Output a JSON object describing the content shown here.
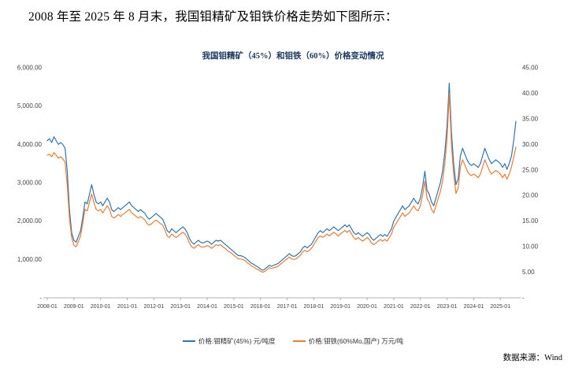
{
  "page": {
    "heading": "2008 年至 2025 年 8 月末，我国钼精矿及钼铁价格走势如下图所示：",
    "source_label": "数据来源：Wind"
  },
  "chart_data": {
    "type": "line",
    "title": "我国钼精矿（45%）和钼铁（60%）价格变动情况",
    "legend_position": "bottom",
    "grid": false,
    "x_start": "2008-01",
    "x_end": "2025-08",
    "frequency": "monthly",
    "x_tick_labels": [
      "2008-01",
      "2009-01",
      "2010-01",
      "2011-01",
      "2012-01",
      "2013-01",
      "2014-01",
      "2015-01",
      "2016-01",
      "2017-01",
      "2018-01",
      "2019-01",
      "2020-01",
      "2021-01",
      "2022-01",
      "2023-01",
      "2024-01",
      "2025-01"
    ],
    "left_axis": {
      "min": 0,
      "max": 6000,
      "unit": "元/吨度",
      "ticks": [
        "6,000.00",
        "5,000.00",
        "4,000.00",
        "3,000.00",
        "2,000.00",
        "1,000.00",
        "-"
      ]
    },
    "right_axis": {
      "min": 0,
      "max": 45,
      "unit": "万元/吨",
      "ticks": [
        "45.00",
        "40.00",
        "35.00",
        "30.00",
        "25.00",
        "20.00",
        "15.00",
        "10.00",
        "5.00",
        "-"
      ]
    },
    "series": [
      {
        "name": "价格:钼精矿(45%) 元/吨度",
        "axis": "left",
        "color": "#2e75b6",
        "values": [
          4100,
          4150,
          4050,
          4200,
          4100,
          4000,
          4050,
          4000,
          3900,
          3300,
          2300,
          1700,
          1500,
          1450,
          1600,
          1750,
          2100,
          2500,
          2450,
          2700,
          2950,
          2700,
          2500,
          2450,
          2500,
          2400,
          2500,
          2600,
          2500,
          2300,
          2250,
          2300,
          2350,
          2300,
          2350,
          2400,
          2450,
          2500,
          2400,
          2350,
          2300,
          2250,
          2300,
          2250,
          2200,
          2100,
          2050,
          2100,
          2150,
          2200,
          2150,
          2100,
          2050,
          1900,
          1750,
          1700,
          1800,
          1750,
          1700,
          1750,
          1800,
          1850,
          1800,
          1700,
          1550,
          1450,
          1400,
          1450,
          1500,
          1450,
          1430,
          1450,
          1480,
          1450,
          1400,
          1450,
          1500,
          1480,
          1500,
          1450,
          1400,
          1350,
          1300,
          1250,
          1200,
          1150,
          1100,
          1100,
          1080,
          1050,
          1000,
          950,
          900,
          870,
          830,
          800,
          750,
          720,
          750,
          800,
          850,
          820,
          850,
          870,
          900,
          950,
          1000,
          1050,
          1100,
          1150,
          1100,
          1080,
          1100,
          1150,
          1200,
          1300,
          1350,
          1300,
          1350,
          1400,
          1500,
          1600,
          1700,
          1750,
          1700,
          1750,
          1800,
          1750,
          1800,
          1850,
          1800,
          1750,
          1800,
          1850,
          1900,
          1850,
          1900,
          1800,
          1700,
          1650,
          1700,
          1650,
          1600,
          1650,
          1700,
          1650,
          1550,
          1500,
          1550,
          1600,
          1650,
          1600,
          1650,
          1600,
          1700,
          1800,
          2000,
          2100,
          2200,
          2300,
          2400,
          2300,
          2350,
          2400,
          2500,
          2600,
          2500,
          2450,
          2600,
          2900,
          3300,
          2800,
          2700,
          2500,
          2400,
          2600,
          2800,
          3000,
          3300,
          3800,
          4500,
          5600,
          4300,
          3500,
          2950,
          3100,
          3700,
          3900,
          3750,
          3600,
          3500,
          3450,
          3500,
          3450,
          3400,
          3500,
          3700,
          3900,
          3750,
          3600,
          3500,
          3550,
          3600,
          3550,
          3500,
          3400,
          3500,
          3350,
          3500,
          3700,
          4100,
          4600
        ]
      },
      {
        "name": "价格:钼铁(60%Mo,国产) 万元/吨",
        "axis": "right",
        "color": "#ed7d31",
        "values": [
          27.9,
          28.1,
          27.6,
          28.4,
          27.9,
          27.3,
          27.6,
          27.2,
          26.5,
          22.0,
          15.5,
          11.8,
          10.3,
          10.0,
          11.0,
          12.1,
          14.6,
          17.3,
          17.0,
          18.7,
          20.3,
          18.7,
          17.3,
          17.0,
          17.3,
          16.6,
          17.3,
          18.0,
          17.3,
          15.9,
          15.6,
          15.9,
          16.3,
          15.9,
          16.3,
          16.6,
          17.0,
          17.3,
          16.6,
          16.3,
          15.9,
          15.6,
          15.9,
          15.6,
          15.2,
          14.5,
          14.2,
          14.5,
          14.9,
          15.2,
          14.9,
          14.5,
          14.2,
          13.2,
          12.1,
          11.8,
          12.5,
          12.1,
          11.8,
          12.1,
          12.5,
          12.8,
          12.5,
          11.8,
          10.7,
          10.0,
          9.7,
          10.0,
          10.4,
          10.0,
          9.9,
          10.0,
          10.2,
          10.0,
          9.7,
          10.0,
          10.4,
          10.2,
          10.4,
          10.0,
          9.7,
          9.3,
          9.0,
          8.7,
          8.3,
          8.0,
          7.6,
          7.6,
          7.5,
          7.3,
          6.9,
          6.6,
          6.2,
          6.0,
          5.7,
          5.5,
          5.2,
          5.0,
          5.2,
          5.5,
          5.9,
          5.7,
          5.9,
          6.0,
          6.2,
          6.6,
          6.9,
          7.3,
          7.6,
          8.0,
          7.6,
          7.5,
          7.6,
          8.0,
          8.3,
          9.0,
          9.3,
          9.0,
          9.3,
          9.7,
          10.4,
          11.1,
          11.8,
          12.1,
          11.8,
          12.1,
          12.5,
          12.1,
          12.5,
          12.8,
          12.5,
          12.1,
          12.5,
          12.8,
          13.2,
          12.8,
          13.2,
          12.5,
          11.8,
          11.4,
          11.8,
          11.4,
          11.1,
          11.4,
          11.8,
          11.4,
          10.7,
          10.4,
          10.7,
          11.1,
          11.4,
          11.1,
          11.4,
          11.1,
          11.8,
          12.5,
          13.8,
          14.5,
          15.2,
          15.9,
          16.6,
          15.9,
          16.3,
          16.6,
          17.3,
          18.0,
          17.3,
          17.0,
          18.0,
          20.1,
          22.8,
          19.4,
          18.7,
          17.3,
          16.6,
          18.0,
          19.4,
          20.8,
          22.8,
          26.3,
          31.1,
          40.0,
          29.8,
          24.2,
          20.4,
          21.5,
          25.6,
          27.0,
          26.0,
          24.9,
          24.2,
          23.9,
          24.2,
          23.9,
          23.5,
          24.2,
          25.6,
          27.0,
          26.0,
          24.9,
          24.2,
          24.6,
          24.9,
          24.6,
          24.2,
          23.5,
          24.2,
          23.2,
          24.2,
          25.6,
          27.5,
          29.5
        ]
      }
    ]
  }
}
